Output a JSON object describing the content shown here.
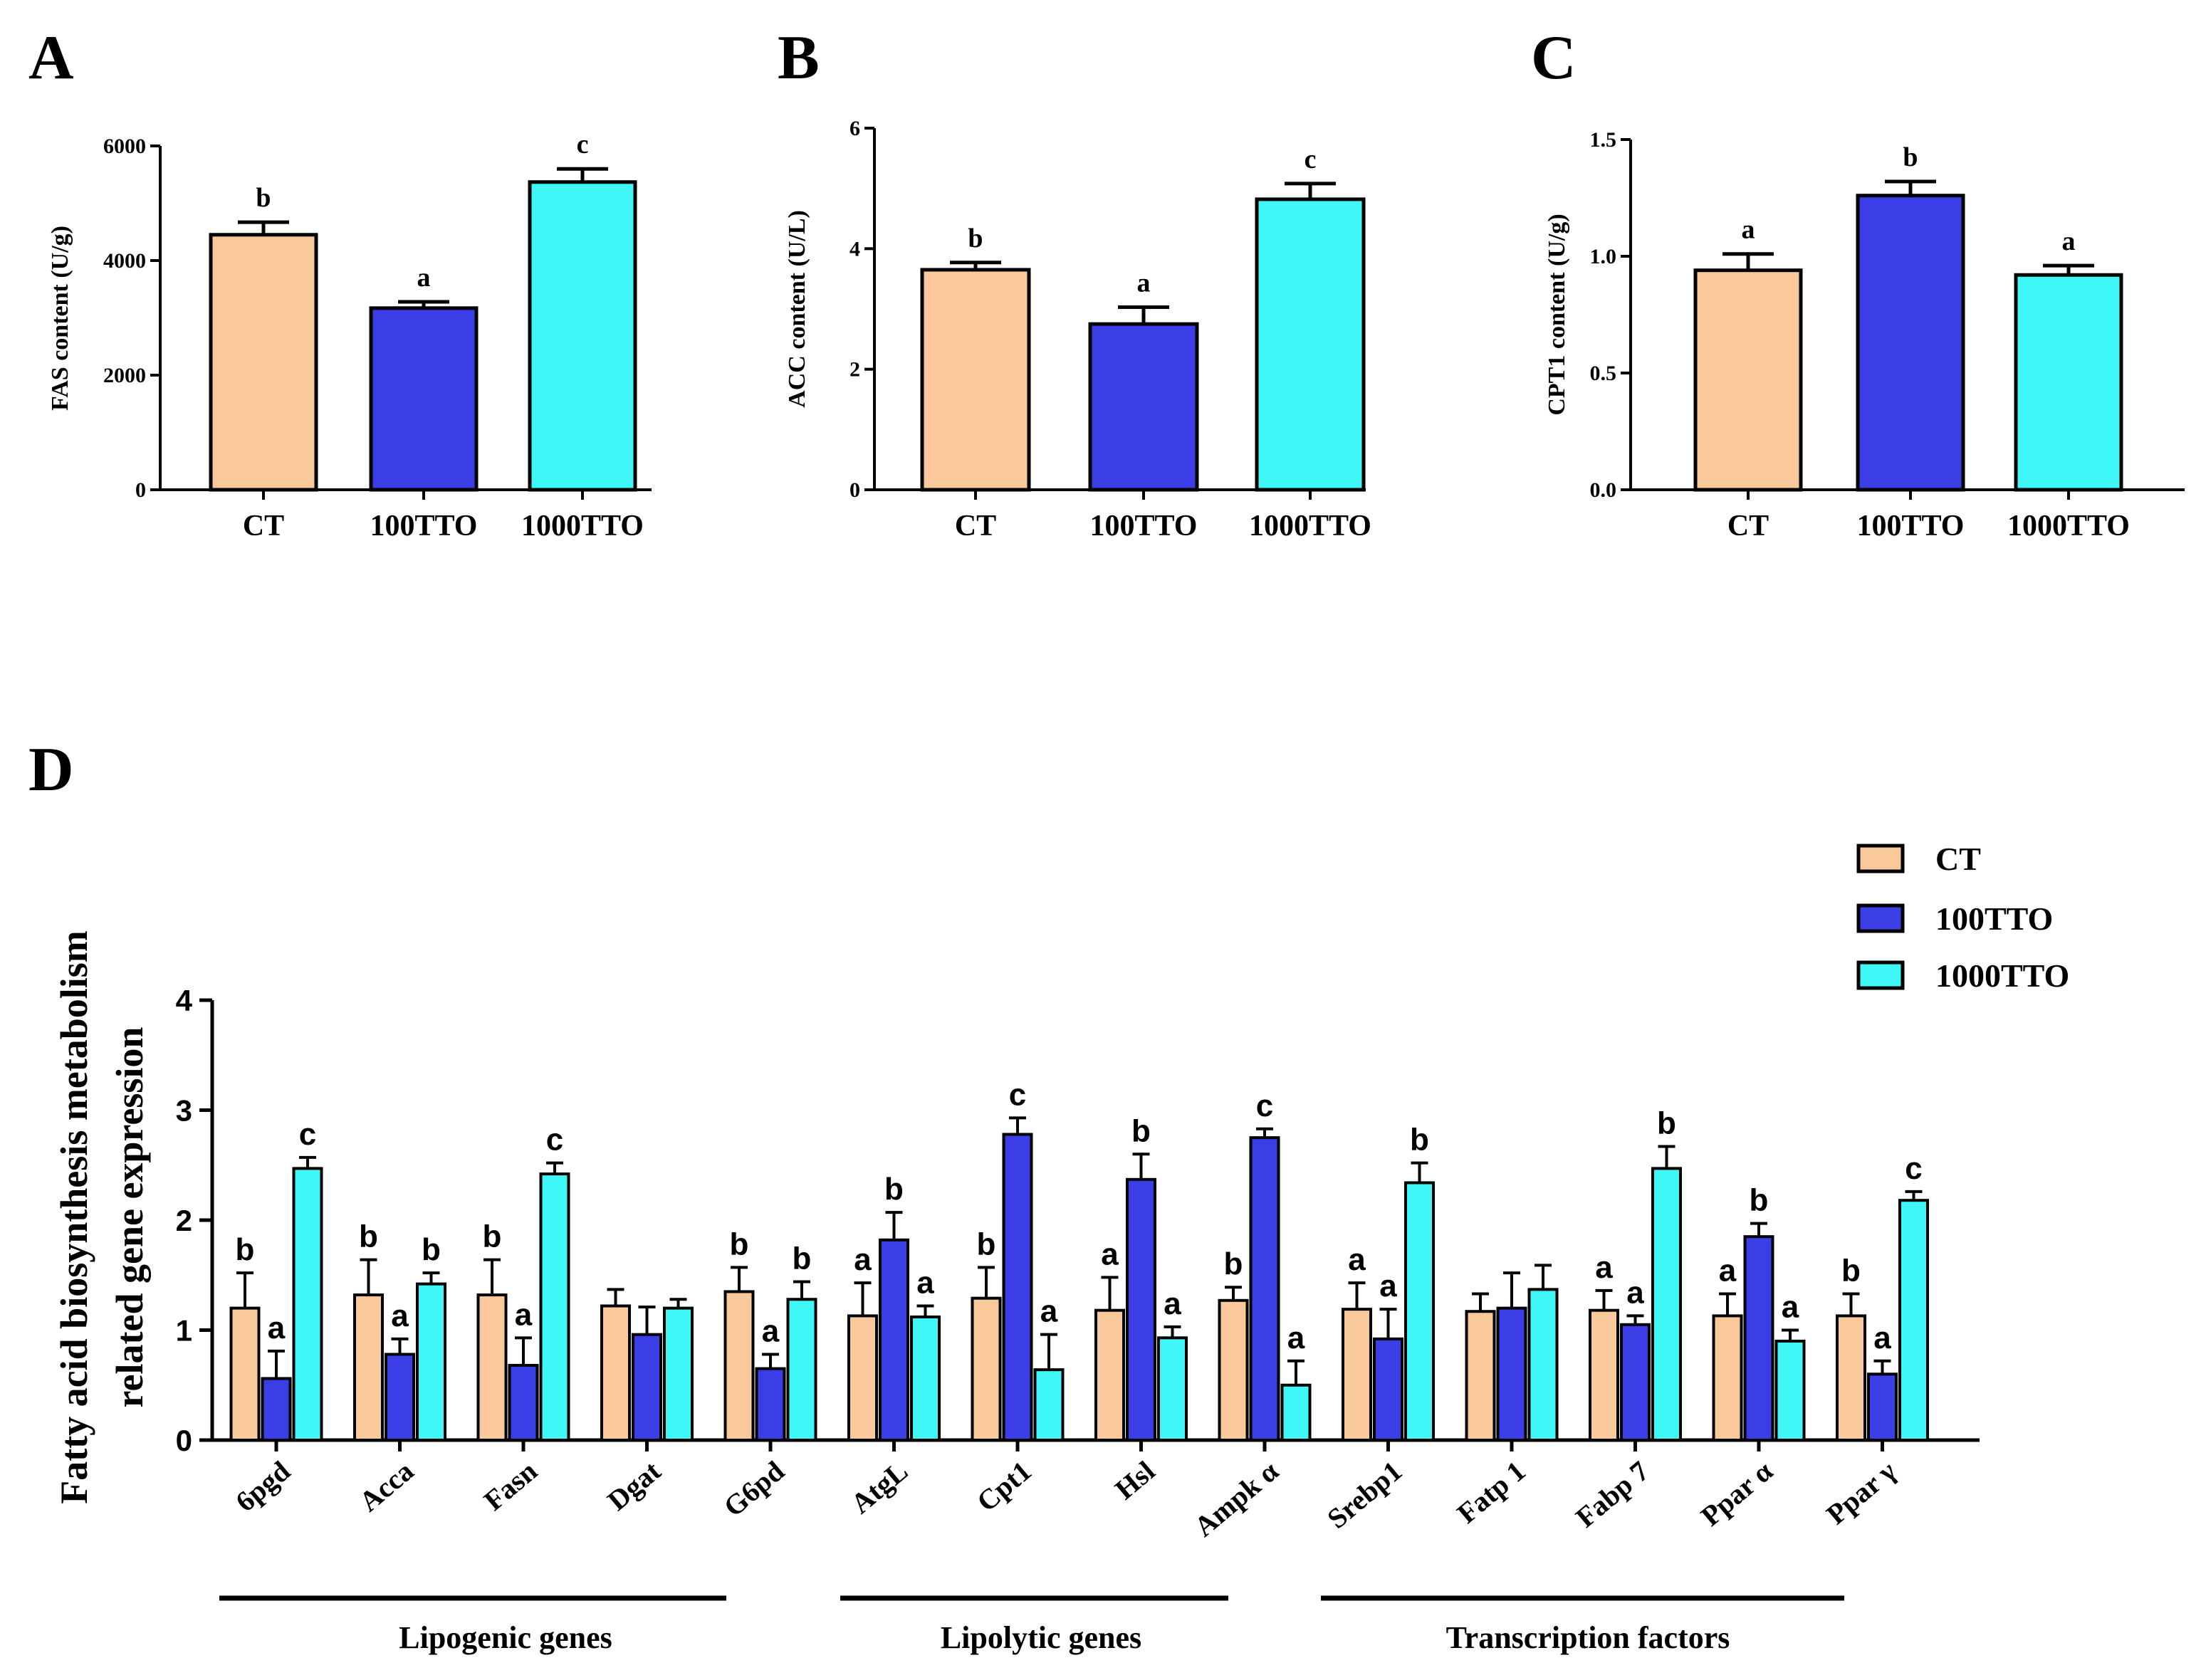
{
  "colors": {
    "CT": "#f9c99b",
    "100TTO": "#3b3ee6",
    "1000TTO": "#3ff7f7",
    "stroke": "#000000"
  },
  "chart_data": [
    {
      "panel": "A",
      "type": "bar",
      "ylabel": "FAS content (U/g)",
      "categories": [
        "CT",
        "100TTO",
        "1000TTO"
      ],
      "values": [
        4450,
        3170,
        5370
      ],
      "errors": [
        220,
        110,
        230
      ],
      "letters": [
        "b",
        "a",
        "c"
      ],
      "ylim": [
        0,
        6000
      ],
      "yticks": [
        0,
        2000,
        4000,
        6000
      ],
      "ytick_labels": [
        "0",
        "2000",
        "4000",
        "6000"
      ]
    },
    {
      "panel": "B",
      "type": "bar",
      "ylabel": "ACC content (U/L)",
      "categories": [
        "CT",
        "100TTO",
        "1000TTO"
      ],
      "values": [
        3.65,
        2.75,
        4.82
      ],
      "errors": [
        0.12,
        0.28,
        0.26
      ],
      "letters": [
        "b",
        "a",
        "c"
      ],
      "ylim": [
        0,
        6
      ],
      "yticks": [
        0,
        2,
        4,
        6
      ],
      "ytick_labels": [
        "0",
        "2",
        "4",
        "6"
      ]
    },
    {
      "panel": "C",
      "type": "bar",
      "ylabel": "CPT1 content (U/g)",
      "categories": [
        "CT",
        "100TTO",
        "1000TTO"
      ],
      "values": [
        0.94,
        1.26,
        0.92
      ],
      "errors": [
        0.07,
        0.06,
        0.04
      ],
      "letters": [
        "a",
        "b",
        "a"
      ],
      "ylim": [
        0,
        1.5
      ],
      "yticks": [
        0,
        0.5,
        1.0,
        1.5
      ],
      "ytick_labels": [
        "0.0",
        "0.5",
        "1.0",
        "1.5"
      ]
    },
    {
      "panel": "D",
      "type": "bar",
      "ylabel_line1": "Fatty acid biosynthesis metabolism",
      "ylabel_line2": "related gene expression",
      "categories": [
        "6pgd",
        "Acca",
        "Fasn",
        "Dgat",
        "G6pd",
        "AtgL",
        "Cpt1",
        "Hsl",
        "Ampk α",
        "Srebp1",
        "Fatp 1",
        "Fabp 7",
        "Ppar α",
        "Ppar γ"
      ],
      "series": [
        {
          "name": "CT",
          "values": [
            1.2,
            1.32,
            1.32,
            1.22,
            1.35,
            1.13,
            1.29,
            1.18,
            1.27,
            1.19,
            1.17,
            1.18,
            1.13,
            1.13
          ],
          "errors": [
            0.32,
            0.32,
            0.32,
            0.15,
            0.22,
            0.3,
            0.28,
            0.3,
            0.12,
            0.24,
            0.16,
            0.18,
            0.2,
            0.2
          ],
          "letters": [
            "b",
            "b",
            "b",
            "",
            "b",
            "a",
            "b",
            "a",
            "b",
            "a",
            "",
            "a",
            "a",
            "b"
          ]
        },
        {
          "name": "100TTO",
          "values": [
            0.56,
            0.78,
            0.68,
            0.96,
            0.65,
            1.82,
            2.78,
            2.37,
            2.75,
            0.92,
            1.2,
            1.05,
            1.85,
            0.6
          ],
          "errors": [
            0.25,
            0.14,
            0.25,
            0.25,
            0.13,
            0.25,
            0.15,
            0.23,
            0.08,
            0.27,
            0.32,
            0.08,
            0.12,
            0.12
          ],
          "letters": [
            "a",
            "a",
            "a",
            "",
            "a",
            "b",
            "c",
            "b",
            "c",
            "a",
            "",
            "a",
            "b",
            "a"
          ]
        },
        {
          "name": "1000TTO",
          "values": [
            2.47,
            1.42,
            2.42,
            1.2,
            1.28,
            1.12,
            0.64,
            0.93,
            0.5,
            2.34,
            1.37,
            2.47,
            0.9,
            2.18
          ],
          "errors": [
            0.1,
            0.1,
            0.1,
            0.08,
            0.16,
            0.1,
            0.32,
            0.1,
            0.22,
            0.18,
            0.22,
            0.2,
            0.1,
            0.08
          ],
          "letters": [
            "c",
            "b",
            "c",
            "",
            "b",
            "a",
            "a",
            "a",
            "a",
            "b",
            "",
            "b",
            "a",
            "c"
          ]
        }
      ],
      "ylim": [
        0,
        4
      ],
      "yticks": [
        0,
        1,
        2,
        3,
        4
      ],
      "ytick_labels": [
        "0",
        "1",
        "2",
        "3",
        "4"
      ],
      "groups": [
        {
          "label": "Lipogenic genes",
          "from": 0,
          "to": 4
        },
        {
          "label": "Lipolytic genes",
          "from": 5,
          "to": 7
        },
        {
          "label": "Transcription factors",
          "from": 8,
          "to": 12
        }
      ],
      "legend": [
        "CT",
        "100TTO",
        "1000TTO"
      ],
      "legend_position": "top-right"
    }
  ]
}
